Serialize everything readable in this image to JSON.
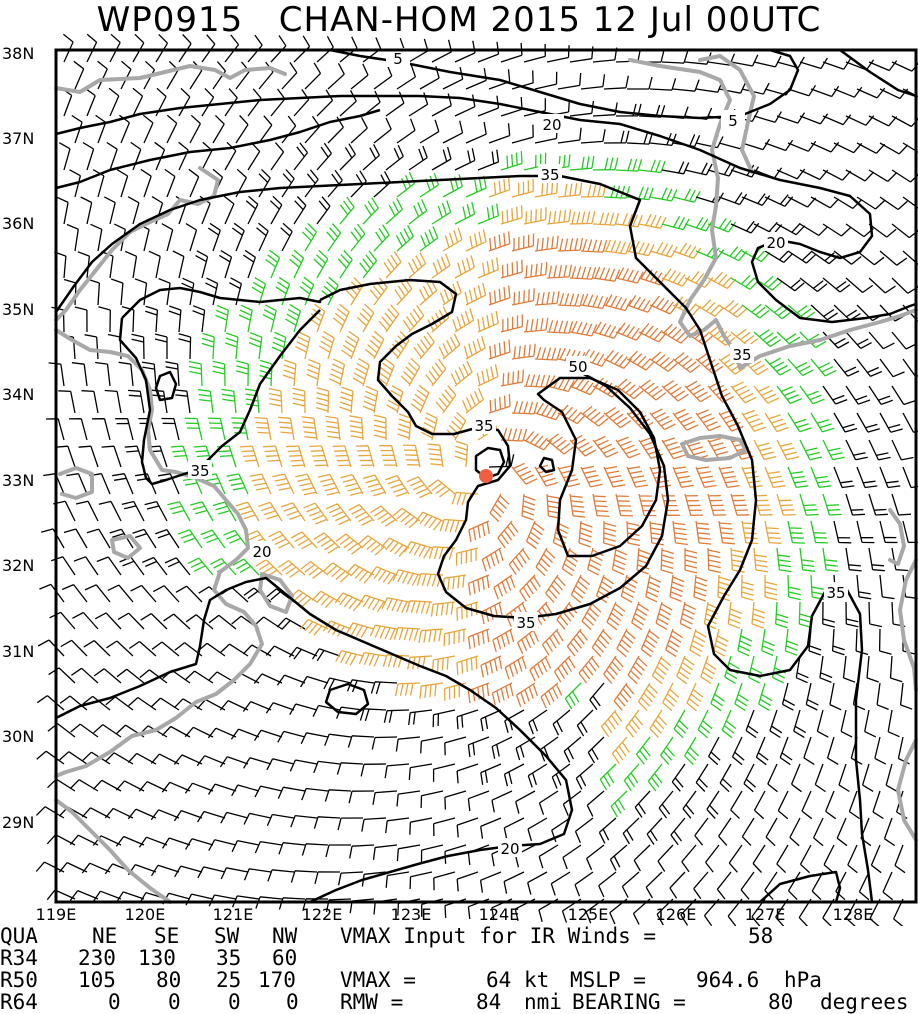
{
  "title": {
    "storm_id": "WP0915",
    "storm_name": "CHAN-HOM 2015 12 Jul 00UTC"
  },
  "map": {
    "lat_labels": [
      "38N",
      "37N",
      "36N",
      "35N",
      "34N",
      "33N",
      "32N",
      "31N",
      "30N",
      "29N"
    ],
    "lon_labels": [
      "119E",
      "120E",
      "121E",
      "122E",
      "123E",
      "124E",
      "125E",
      "126E",
      "127E",
      "128E"
    ],
    "contour_labels": [
      "5",
      "5",
      "20",
      "20",
      "20",
      "20",
      "35",
      "35",
      "35",
      "35",
      "35",
      "35",
      "50"
    ],
    "storm_center": {
      "lat": 33.04,
      "lon": 123.95
    },
    "colors": {
      "frame": "#000000",
      "coast": "#a8a8a8",
      "contour": "#000000",
      "barb_calm": "#000000",
      "barb_34kt": "#22cc22",
      "barb_50kt": "#e8a53a",
      "barb_64kt": "#e07b39",
      "center": "#f06040"
    }
  },
  "stats": {
    "header": [
      "QUA",
      "NE",
      "SE",
      "SW",
      "NW"
    ],
    "rows": [
      {
        "label": "R34",
        "ne": "230",
        "se": "130",
        "sw": "35",
        "nw": "60"
      },
      {
        "label": "R50",
        "ne": "105",
        "se": "80",
        "sw": "25",
        "nw": "170"
      },
      {
        "label": "R64",
        "ne": "0",
        "se": "0",
        "sw": "0",
        "nw": "0"
      }
    ],
    "vmax_ir_label": "VMAX Input for IR Winds =",
    "vmax_ir_value": "58",
    "vmax_label": "VMAX =",
    "vmax_value": "64",
    "vmax_unit": "kt",
    "mslp_label": "MSLP =",
    "mslp_value": "964.6",
    "mslp_unit": "hPa",
    "rmw_label": "RMW =",
    "rmw_value": "84",
    "rmw_unit": "nmi",
    "bearing_label": "BEARING =",
    "bearing_value": "80",
    "bearing_unit": "degrees"
  }
}
